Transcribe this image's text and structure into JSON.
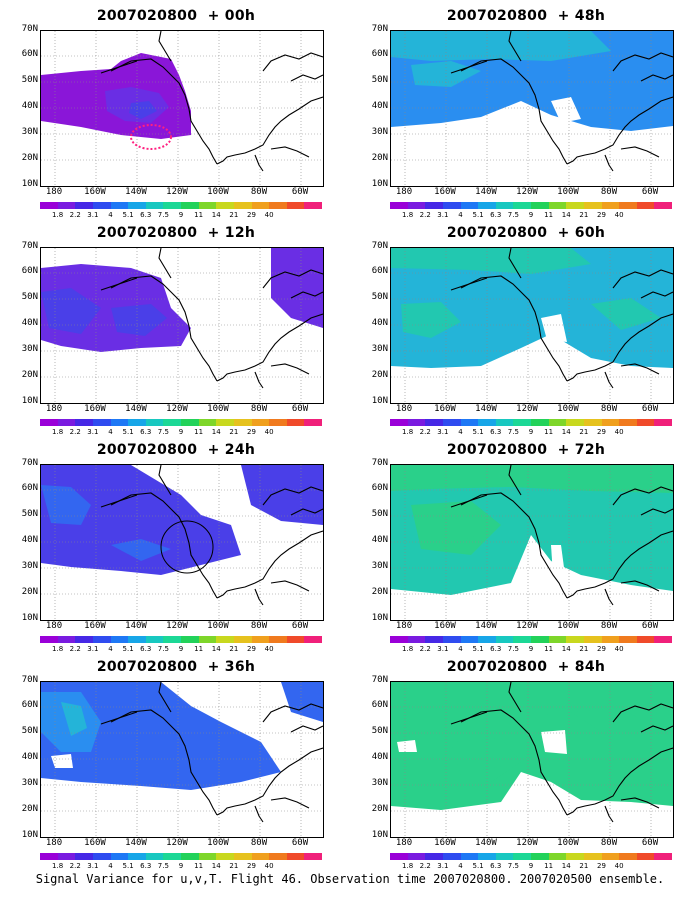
{
  "panels": [
    {
      "title": "2007020800  + 00h",
      "intensity": 0
    },
    {
      "title": "2007020800  + 48h",
      "intensity": 4
    },
    {
      "title": "2007020800  + 12h",
      "intensity": 1
    },
    {
      "title": "2007020800  + 60h",
      "intensity": 5
    },
    {
      "title": "2007020800  + 24h",
      "intensity": 2
    },
    {
      "title": "2007020800  + 72h",
      "intensity": 6
    },
    {
      "title": "2007020800  + 36h",
      "intensity": 3
    },
    {
      "title": "2007020800  + 84h",
      "intensity": 7
    }
  ],
  "lat_labels": [
    "70N",
    "60N",
    "50N",
    "40N",
    "30N",
    "20N",
    "10N"
  ],
  "lon_labels": [
    "180",
    "160W",
    "140W",
    "120W",
    "100W",
    "80W",
    "60W"
  ],
  "colorbar": {
    "colors": [
      "#9a00d8",
      "#7a1be0",
      "#4628e6",
      "#2f4cf0",
      "#1e78f5",
      "#17a6e8",
      "#18c8c0",
      "#1cd896",
      "#22d25a",
      "#7ed62a",
      "#c8d81e",
      "#e6c21e",
      "#f0a01e",
      "#f07a1e",
      "#f04a2a",
      "#f0207a"
    ],
    "labels": [
      "1.8",
      "2.2",
      "3.1",
      "4",
      "5.1",
      "6.3",
      "7.5",
      "9",
      "11",
      "14",
      "21",
      "29",
      "40"
    ]
  },
  "footer": "Signal Variance for u,v,T. Flight 46. Observation time 2007020800. 2007020500 ensemble."
}
